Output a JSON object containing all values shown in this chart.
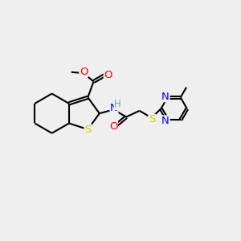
{
  "bg_color": "#efefef",
  "bond_color": "#000000",
  "bond_width": 1.5,
  "atom_colors": {
    "S": "#cccc00",
    "O": "#ff0000",
    "N": "#0000ff",
    "H": "#66aaaa",
    "C": "#000000"
  },
  "font_size": 8.5
}
